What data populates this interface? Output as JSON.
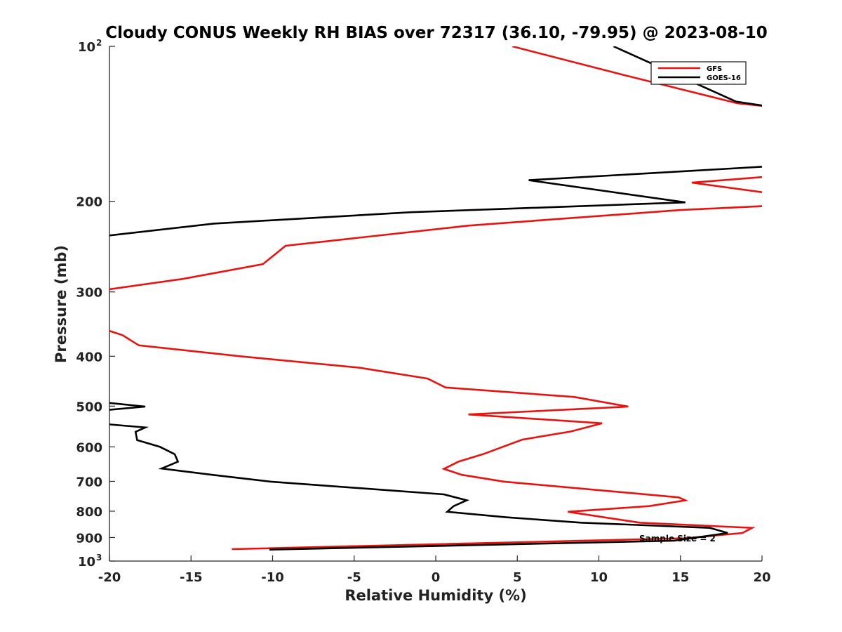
{
  "chart_data": {
    "type": "line",
    "title": "Cloudy CONUS Weekly RH BIAS over 72317 (36.10, -79.95) @ 2023-08-10",
    "xlabel": "Relative Humidity (%)",
    "ylabel": "Pressure (mb)",
    "xlim": [
      -20,
      20
    ],
    "ylim": [
      100,
      1000
    ],
    "y_scale": "log",
    "y_reversed": true,
    "grid": false,
    "legend_position": "top-right",
    "xticks": [
      {
        "value": -20,
        "label": "-20"
      },
      {
        "value": -15,
        "label": "-15"
      },
      {
        "value": -10,
        "label": "-10"
      },
      {
        "value": -5,
        "label": "-5"
      },
      {
        "value": 0,
        "label": "0"
      },
      {
        "value": 5,
        "label": "5"
      },
      {
        "value": 10,
        "label": "10"
      },
      {
        "value": 15,
        "label": "15"
      },
      {
        "value": 20,
        "label": "20"
      }
    ],
    "yticks": [
      {
        "value": 100,
        "base": "10",
        "exp": "2"
      },
      {
        "value": 200,
        "base": "200",
        "exp": ""
      },
      {
        "value": 300,
        "base": "300",
        "exp": ""
      },
      {
        "value": 400,
        "base": "400",
        "exp": ""
      },
      {
        "value": 500,
        "base": "500",
        "exp": ""
      },
      {
        "value": 600,
        "base": "600",
        "exp": ""
      },
      {
        "value": 700,
        "base": "700",
        "exp": ""
      },
      {
        "value": 800,
        "base": "800",
        "exp": ""
      },
      {
        "value": 900,
        "base": "900",
        "exp": ""
      },
      {
        "value": 1000,
        "base": "10",
        "exp": "3"
      }
    ],
    "annotation": "Sample Size = 2",
    "series": [
      {
        "name": "GFS",
        "color": "#e8130f",
        "points": [
          [
            4.7,
            100
          ],
          [
            11.2,
            113
          ],
          [
            18.5,
            129
          ],
          [
            20.5,
            131
          ],
          [
            null,
            null
          ],
          [
            20.5,
            179
          ],
          [
            15.7,
            184
          ],
          [
            20.5,
            193
          ],
          [
            null,
            null
          ],
          [
            20.5,
            204
          ],
          [
            15,
            208
          ],
          [
            2,
            223
          ],
          [
            -9.2,
            244
          ],
          [
            -10.6,
            265
          ],
          [
            -15.5,
            283
          ],
          [
            -20.5,
            298
          ],
          [
            null,
            null
          ],
          [
            -20.5,
            353
          ],
          [
            -19.2,
            364
          ],
          [
            -18.2,
            381
          ],
          [
            -12,
            400
          ],
          [
            -4.7,
            421
          ],
          [
            -0.5,
            442
          ],
          [
            0.6,
            460
          ],
          [
            8.5,
            480
          ],
          [
            11.8,
            501
          ],
          [
            2,
            519
          ],
          [
            10.2,
            540
          ],
          [
            8.3,
            560
          ],
          [
            5.3,
            581
          ],
          [
            2.9,
            620
          ],
          [
            1.4,
            641
          ],
          [
            0.5,
            662
          ],
          [
            1.6,
            680
          ],
          [
            4.2,
            701
          ],
          [
            14.9,
            752
          ],
          [
            15.3,
            762
          ],
          [
            13.1,
            782
          ],
          [
            8.1,
            802
          ],
          [
            12.5,
            842
          ],
          [
            19.4,
            862
          ],
          [
            18.8,
            882
          ],
          [
            15.3,
            903
          ],
          [
            -12.5,
            948
          ]
        ]
      },
      {
        "name": "GOES-16",
        "color": "#000000",
        "points": [
          [
            10.9,
            100
          ],
          [
            18.4,
            128
          ],
          [
            20.5,
            131
          ],
          [
            null,
            null
          ],
          [
            20.5,
            171
          ],
          [
            5.7,
            182
          ],
          [
            15.3,
            201
          ],
          [
            -1.5,
            210
          ],
          [
            -13.6,
            221
          ],
          [
            -20.5,
            234
          ],
          [
            null,
            null
          ],
          [
            -20.5,
            491
          ],
          [
            -17.8,
            501
          ],
          [
            -20.5,
            510
          ],
          [
            null,
            null
          ],
          [
            -20.5,
            541
          ],
          [
            -17.8,
            550
          ],
          [
            -18.4,
            561
          ],
          [
            -18.3,
            582
          ],
          [
            -16.9,
            600
          ],
          [
            -16,
            620
          ],
          [
            -15.8,
            641
          ],
          [
            -16.8,
            661
          ],
          [
            -13.7,
            680
          ],
          [
            -10.1,
            701
          ],
          [
            0.5,
            742
          ],
          [
            1.9,
            762
          ],
          [
            1.1,
            782
          ],
          [
            0.7,
            802
          ],
          [
            4.3,
            822
          ],
          [
            8.9,
            842
          ],
          [
            16.8,
            862
          ],
          [
            17.9,
            882
          ],
          [
            14.6,
            913
          ],
          [
            -10.2,
            950
          ]
        ]
      }
    ]
  }
}
